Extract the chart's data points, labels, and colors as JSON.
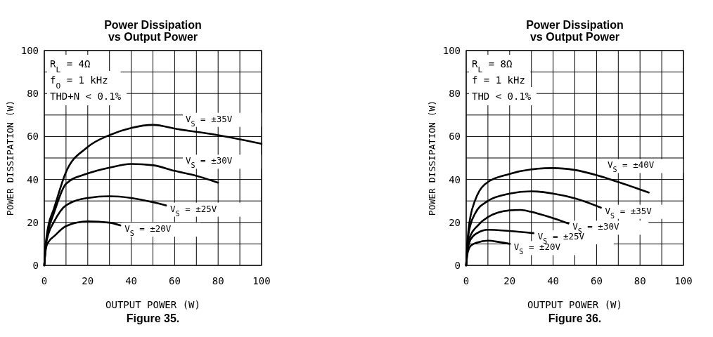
{
  "chart_data": [
    {
      "type": "line",
      "title": "Power Dissipation\nvs Output Power",
      "xlabel": "OUTPUT POWER (W)",
      "ylabel": "POWER DISSIPATION (W)",
      "xlim": [
        0,
        100
      ],
      "ylim": [
        0,
        100
      ],
      "xticks": [
        0,
        {
          "value": 10,
          "label": null
        },
        20,
        {
          "value": 30,
          "label": null
        },
        40,
        {
          "value": 50,
          "label": null
        },
        60,
        {
          "value": 70,
          "label": null
        },
        80,
        {
          "value": 90,
          "label": null
        },
        100
      ],
      "yticks": [
        0,
        {
          "value": 10,
          "label": null
        },
        20,
        {
          "value": 30,
          "label": null
        },
        40,
        {
          "value": 50,
          "label": null
        },
        60,
        {
          "value": 70,
          "label": null
        },
        80,
        {
          "value": 90,
          "label": null
        },
        100
      ],
      "grid": true,
      "line_style": "solid",
      "series": [
        {
          "name": "V$_{S}$ = ±35V",
          "color": "#000000",
          "x": [
            0,
            0.5,
            1,
            2,
            4.3,
            9.8,
            19.6,
            30.4,
            40,
            50,
            61,
            79,
            100
          ],
          "values": [
            0,
            8,
            13,
            19,
            26,
            43,
            54.8,
            60.8,
            64,
            65.4,
            63.5,
            60.8,
            56.6
          ]
        },
        {
          "name": "V$_{S}$ = ±30V",
          "color": "#000000",
          "x": [
            0,
            0.5,
            1,
            2,
            4.3,
            10,
            20,
            30,
            40,
            50,
            60,
            70,
            80
          ],
          "values": [
            0,
            8,
            12,
            17,
            24,
            38,
            42.8,
            45.5,
            47.2,
            46.6,
            44,
            41.7,
            38.5
          ]
        },
        {
          "name": "V$_{S}$ = ±25V",
          "color": "#000000",
          "x": [
            0,
            0.5,
            1,
            2,
            4.3,
            10,
            20,
            30,
            40,
            50,
            56
          ],
          "values": [
            0,
            7,
            11,
            15,
            20,
            28,
            31.4,
            32.2,
            31.4,
            29.4,
            27.9
          ]
        },
        {
          "name": "V$_{S}$ = ±20V",
          "color": "#000000",
          "x": [
            0,
            0.5,
            1,
            2,
            5,
            10,
            20,
            30,
            35
          ],
          "values": [
            0,
            6,
            9,
            11,
            14,
            18.3,
            20.5,
            19.9,
            18.6
          ]
        }
      ],
      "annotations": [
        "R$_{L}$ = 4Ω",
        "f$_{O}$ = 1 kHz",
        "THD+N < 0.1%",
        "Figure 35."
      ]
    },
    {
      "type": "line",
      "title": "Power Dissipation\nvs Output Power",
      "xlabel": "OUTPUT POWER (W)",
      "ylabel": "POWER DISSIPATION (W)",
      "xlim": [
        0,
        100
      ],
      "ylim": [
        0,
        100
      ],
      "xticks": [
        0,
        {
          "value": 10,
          "label": null
        },
        20,
        {
          "value": 30,
          "label": null
        },
        40,
        {
          "value": 50,
          "label": null
        },
        60,
        {
          "value": 70,
          "label": null
        },
        80,
        {
          "value": 90,
          "label": null
        },
        100
      ],
      "yticks": [
        0,
        {
          "value": 10,
          "label": null
        },
        20,
        {
          "value": 30,
          "label": null
        },
        40,
        {
          "value": 50,
          "label": null
        },
        60,
        {
          "value": 70,
          "label": null
        },
        80,
        {
          "value": 90,
          "label": null
        },
        100
      ],
      "grid": true,
      "line_style": "solid",
      "series": [
        {
          "name": "V$_{S}$ = ±40V",
          "color": "#000000",
          "x": [
            0,
            0.5,
            1,
            2,
            4,
            8.5,
            20,
            30,
            40,
            50,
            60,
            70,
            84
          ],
          "values": [
            0,
            10,
            16,
            23,
            30,
            37.7,
            42.6,
            44.7,
            45.3,
            44.4,
            42,
            38.8,
            33.9
          ]
        },
        {
          "name": "V$_{S}$ = ±35V",
          "color": "#000000",
          "x": [
            0,
            0.5,
            1,
            2,
            4,
            10,
            20,
            30,
            40,
            50,
            62
          ],
          "values": [
            0,
            9,
            14,
            19,
            24,
            30,
            33.4,
            34.5,
            33.4,
            31.2,
            26.9
          ]
        },
        {
          "name": "V$_{S}$ = ±30V",
          "color": "#000000",
          "x": [
            0,
            0.5,
            1,
            2,
            5,
            10,
            20,
            25,
            30,
            40,
            47
          ],
          "values": [
            0,
            8,
            11,
            14,
            18.2,
            22.5,
            25.6,
            25.8,
            24.9,
            22,
            19.5
          ]
        },
        {
          "name": "V$_{S}$ = ±25V",
          "color": "#000000",
          "x": [
            0,
            0.5,
            1,
            2,
            5,
            10,
            20,
            31
          ],
          "values": [
            0,
            6,
            9,
            12,
            15,
            16.6,
            16,
            15
          ]
        },
        {
          "name": "V$_{S}$ = ±20V",
          "color": "#000000",
          "x": [
            0,
            0.5,
            1,
            2,
            5,
            10,
            15,
            20
          ],
          "values": [
            0,
            5,
            7,
            9,
            10.6,
            11.5,
            10.9,
            10
          ]
        }
      ],
      "annotations": [
        "R$_{L}$ = 8Ω",
        "f = 1 kHz",
        "THD < 0.1%",
        "Figure 36."
      ]
    }
  ]
}
